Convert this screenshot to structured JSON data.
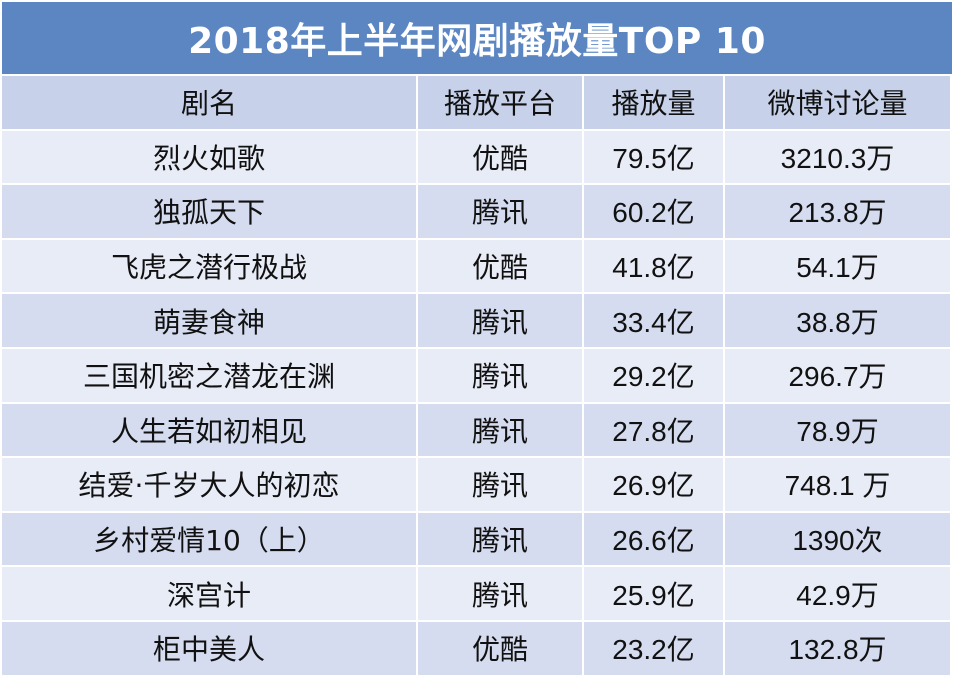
{
  "title": "2018年上半年网剧播放量TOP 10",
  "headers": [
    "剧名",
    "播放平台",
    "播放量",
    "微博讨论量"
  ],
  "rows": [
    {
      "name": "烈火如歌",
      "platform": "优酷",
      "plays": "79.5亿",
      "weibo": "3210.3万"
    },
    {
      "name": "独孤天下",
      "platform": "腾讯",
      "plays": "60.2亿",
      "weibo": "213.8万"
    },
    {
      "name": "飞虎之潜行极战",
      "platform": "优酷",
      "plays": "41.8亿",
      "weibo": "54.1万"
    },
    {
      "name": "萌妻食神",
      "platform": "腾讯",
      "plays": "33.4亿",
      "weibo": "38.8万"
    },
    {
      "name": "三国机密之潜龙在渊",
      "platform": "腾讯",
      "plays": "29.2亿",
      "weibo": "296.7万"
    },
    {
      "name": "人生若如初相见",
      "platform": "腾讯",
      "plays": "27.8亿",
      "weibo": "78.9万"
    },
    {
      "name": "结爱·千岁大人的初恋",
      "platform": "腾讯",
      "plays": "26.9亿",
      "weibo": "748.1 万"
    },
    {
      "name": "乡村爱情10（上）",
      "platform": "腾讯",
      "plays": "26.6亿",
      "weibo": "1390次"
    },
    {
      "name": "深宫计",
      "platform": "腾讯",
      "plays": "25.9亿",
      "weibo": "42.9万"
    },
    {
      "name": "柜中美人",
      "platform": "优酷",
      "plays": "23.2亿",
      "weibo": "132.8万"
    }
  ],
  "colors": {
    "title_bg": "#5b86c2",
    "header_bg": "#c7d1ea",
    "row_light": "#e8ecf7",
    "row_dark": "#d5dcef"
  }
}
